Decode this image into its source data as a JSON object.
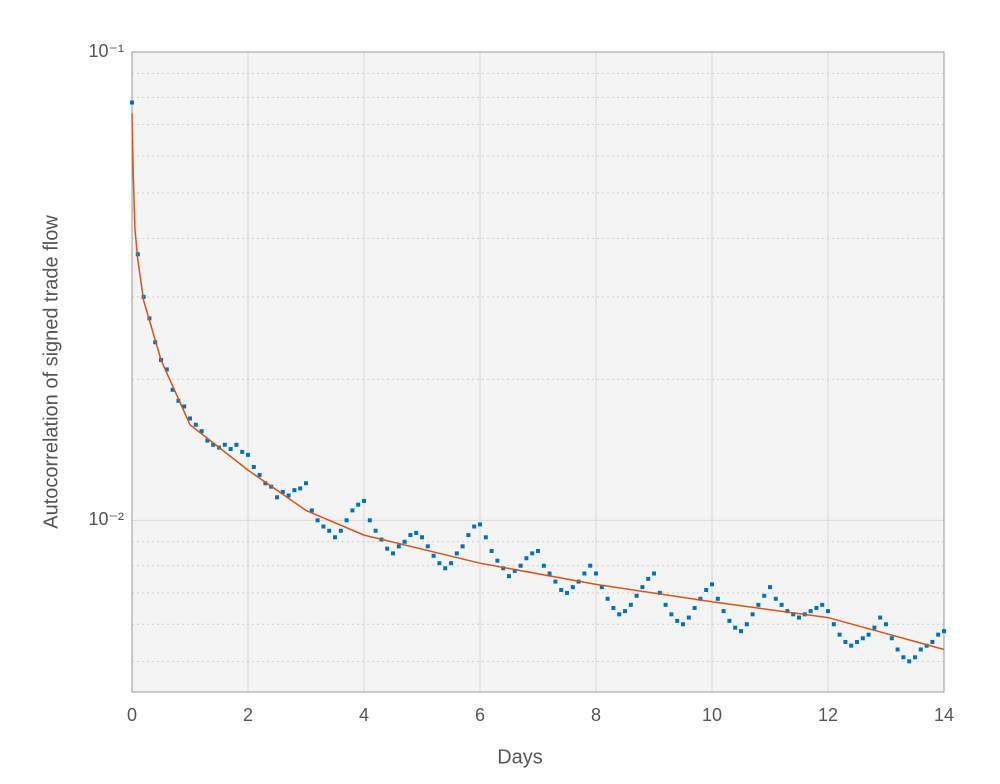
{
  "chart_data": {
    "type": "scatter",
    "xlabel": "Days",
    "ylabel": "Autocorrelation of signed trade flow",
    "xlim": [
      0,
      14
    ],
    "xticks": [
      0,
      2,
      4,
      6,
      8,
      10,
      12,
      14
    ],
    "ylim": [
      0.0043,
      0.1
    ],
    "yscale": "log",
    "yticks": [
      {
        "value": 0.01,
        "label": "10⁻²"
      },
      {
        "value": 0.1,
        "label": "10⁻¹"
      }
    ],
    "yminorticks": [
      0.005,
      0.006,
      0.007,
      0.008,
      0.009,
      0.02,
      0.03,
      0.04,
      0.05,
      0.06,
      0.07,
      0.08,
      0.09
    ],
    "grid": true,
    "minor_grid": true,
    "series": [
      {
        "mode": "markers",
        "color": "#0072bd",
        "x": [
          0,
          0.1,
          0.2,
          0.3,
          0.4,
          0.5,
          0.6,
          0.7,
          0.8,
          0.9,
          1,
          1.1,
          1.2,
          1.3,
          1.4,
          1.5,
          1.6,
          1.7,
          1.8,
          1.9,
          2,
          2.1,
          2.2,
          2.3,
          2.4,
          2.5,
          2.6,
          2.7,
          2.8,
          2.9,
          3,
          3.1,
          3.2,
          3.3,
          3.4,
          3.5,
          3.6,
          3.7,
          3.8,
          3.9,
          4,
          4.1,
          4.2,
          4.3,
          4.4,
          4.5,
          4.6,
          4.7,
          4.8,
          4.9,
          5,
          5.1,
          5.2,
          5.3,
          5.4,
          5.5,
          5.6,
          5.7,
          5.8,
          5.9,
          6,
          6.1,
          6.2,
          6.3,
          6.4,
          6.5,
          6.6,
          6.7,
          6.8,
          6.9,
          7,
          7.1,
          7.2,
          7.3,
          7.4,
          7.5,
          7.6,
          7.7,
          7.8,
          7.9,
          8,
          8.1,
          8.2,
          8.3,
          8.4,
          8.5,
          8.6,
          8.7,
          8.8,
          8.9,
          9,
          9.1,
          9.2,
          9.3,
          9.4,
          9.5,
          9.6,
          9.7,
          9.8,
          9.9,
          10,
          10.1,
          10.2,
          10.3,
          10.4,
          10.5,
          10.6,
          10.7,
          10.8,
          10.9,
          11,
          11.1,
          11.2,
          11.3,
          11.4,
          11.5,
          11.6,
          11.7,
          11.8,
          11.9,
          12,
          12.1,
          12.2,
          12.3,
          12.4,
          12.5,
          12.6,
          12.7,
          12.8,
          12.9,
          13,
          13.1,
          13.2,
          13.3,
          13.4,
          13.5,
          13.6,
          13.7,
          13.8,
          13.9,
          14
        ],
        "values": [
          0.078,
          0.037,
          0.03,
          0.027,
          0.024,
          0.022,
          0.021,
          0.019,
          0.018,
          0.0175,
          0.0165,
          0.016,
          0.0155,
          0.0148,
          0.0145,
          0.0143,
          0.0145,
          0.0142,
          0.0145,
          0.014,
          0.0138,
          0.013,
          0.0125,
          0.012,
          0.0118,
          0.0112,
          0.0115,
          0.0113,
          0.0116,
          0.0117,
          0.012,
          0.0105,
          0.01,
          0.0097,
          0.0095,
          0.0092,
          0.0095,
          0.01,
          0.0105,
          0.0108,
          0.011,
          0.01,
          0.0095,
          0.0091,
          0.0087,
          0.0085,
          0.0088,
          0.009,
          0.0093,
          0.0094,
          0.0092,
          0.0088,
          0.0084,
          0.0081,
          0.0079,
          0.0081,
          0.0085,
          0.0088,
          0.0093,
          0.0097,
          0.0098,
          0.0092,
          0.0086,
          0.0082,
          0.0079,
          0.0076,
          0.0078,
          0.008,
          0.0083,
          0.0085,
          0.0086,
          0.008,
          0.0077,
          0.0074,
          0.0071,
          0.007,
          0.0072,
          0.0074,
          0.0077,
          0.008,
          0.0077,
          0.0072,
          0.0068,
          0.0065,
          0.0063,
          0.0064,
          0.0066,
          0.0069,
          0.0072,
          0.0075,
          0.0077,
          0.007,
          0.0066,
          0.0063,
          0.0061,
          0.006,
          0.0062,
          0.0065,
          0.0068,
          0.0071,
          0.0073,
          0.0068,
          0.0064,
          0.0061,
          0.0059,
          0.0058,
          0.006,
          0.0063,
          0.0066,
          0.0069,
          0.0072,
          0.0068,
          0.0066,
          0.0064,
          0.0063,
          0.0062,
          0.0063,
          0.0064,
          0.0065,
          0.0066,
          0.0064,
          0.006,
          0.0057,
          0.0055,
          0.0054,
          0.0055,
          0.0056,
          0.0057,
          0.0059,
          0.0062,
          0.006,
          0.0056,
          0.0053,
          0.0051,
          0.005,
          0.0051,
          0.0053,
          0.0054,
          0.0055,
          0.0057,
          0.0058
        ]
      },
      {
        "mode": "line",
        "color": "#d95319",
        "x": [
          0,
          0.02,
          0.05,
          0.1,
          0.2,
          0.5,
          1,
          2,
          3,
          4,
          6,
          8,
          10,
          12,
          14
        ],
        "values": [
          0.074,
          0.056,
          0.042,
          0.036,
          0.0295,
          0.022,
          0.016,
          0.0128,
          0.0105,
          0.0093,
          0.0081,
          0.0073,
          0.0067,
          0.0062,
          0.0053
        ]
      }
    ]
  }
}
